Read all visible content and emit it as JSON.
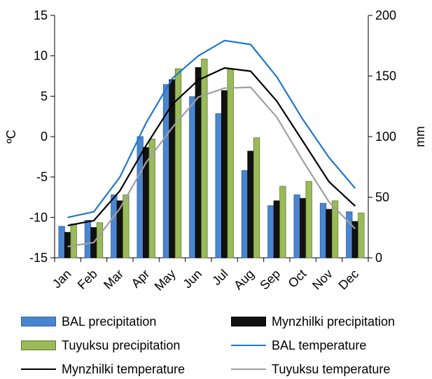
{
  "chart_data": {
    "type": "bar",
    "categories": [
      "Jan",
      "Feb",
      "Mar",
      "Apr",
      "May",
      "Jun",
      "Jul",
      "Aug",
      "Sep",
      "Oct",
      "Nov",
      "Dec"
    ],
    "ylabel": "ºC",
    "y2label": "mm",
    "ylim": [
      -15,
      15
    ],
    "y2lim": [
      0,
      200
    ],
    "yticks": [
      "15",
      "10",
      "5",
      "0",
      "-5",
      "-10",
      "-15"
    ],
    "y2ticks": [
      "200",
      "150",
      "100",
      "50",
      "0"
    ],
    "series": [
      {
        "name": "BAL precipitation",
        "kind": "bar",
        "axis": "right",
        "color": "#4a86d0",
        "values": [
          26,
          31,
          52,
          100,
          143,
          133,
          119,
          72,
          43,
          52,
          45,
          38
        ]
      },
      {
        "name": "Mynzhilki precipitation",
        "kind": "bar",
        "axis": "right",
        "color": "#111111",
        "values": [
          21,
          25,
          47,
          91,
          147,
          157,
          138,
          88,
          47,
          49,
          40,
          30
        ]
      },
      {
        "name": "Tuyuksu precipitation",
        "kind": "bar",
        "axis": "right",
        "color": "#9bbb59",
        "values": [
          28,
          29,
          52,
          98,
          156,
          164,
          156,
          99,
          59,
          63,
          47,
          37
        ]
      },
      {
        "name": "BAL temperature",
        "kind": "line",
        "axis": "left",
        "color": "#1f78c8",
        "values": [
          -10.0,
          -9.3,
          -5.0,
          1.7,
          7.2,
          10.0,
          11.9,
          11.4,
          7.4,
          2.1,
          -2.6,
          -6.4
        ]
      },
      {
        "name": "Mynzhilki temperature",
        "kind": "line",
        "axis": "left",
        "color": "#000000",
        "values": [
          -11.0,
          -10.4,
          -6.7,
          -1.1,
          4.0,
          7.0,
          8.5,
          8.1,
          4.4,
          -0.6,
          -5.6,
          -8.6
        ]
      },
      {
        "name": "Tuyuksu temperature",
        "kind": "line",
        "axis": "left",
        "color": "#a0a0a0",
        "values": [
          -13.6,
          -13.1,
          -8.9,
          -3.2,
          1.1,
          4.9,
          6.0,
          6.1,
          2.4,
          -3.0,
          -8.1,
          -11.4
        ]
      }
    ],
    "legend_position": "bottom",
    "grid": false
  }
}
